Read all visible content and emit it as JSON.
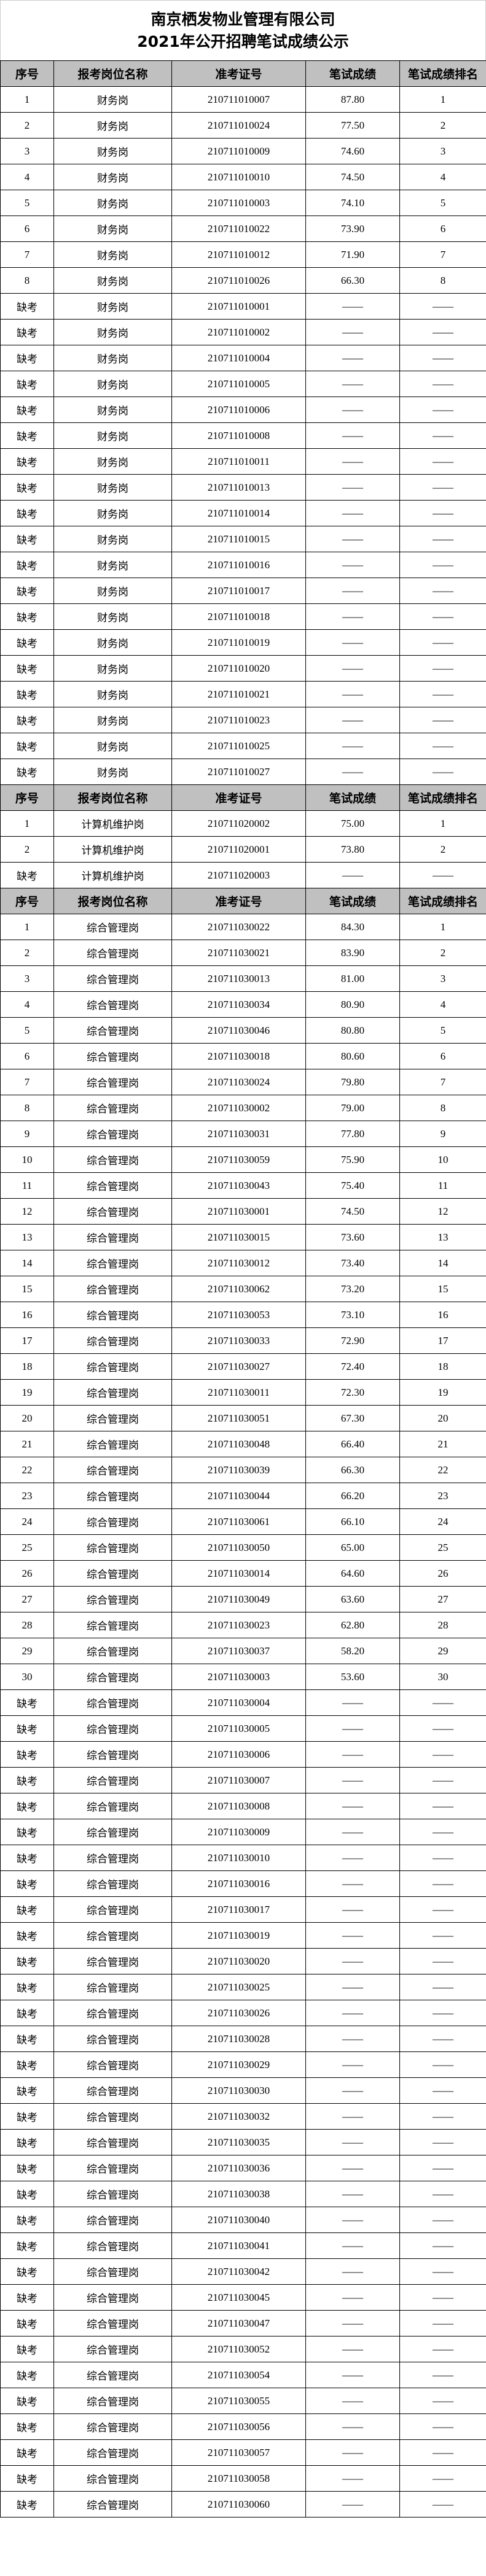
{
  "title": {
    "line1": "南京栖发物业管理有限公司",
    "line2": "2021年公开招聘笔试成绩公示"
  },
  "headers": [
    "序号",
    "报考岗位名称",
    "准考证号",
    "笔试成绩",
    "笔试成绩排名"
  ],
  "sections": [
    {
      "rows": [
        [
          "1",
          "财务岗",
          "210711010007",
          "87.80",
          "1"
        ],
        [
          "2",
          "财务岗",
          "210711010024",
          "77.50",
          "2"
        ],
        [
          "3",
          "财务岗",
          "210711010009",
          "74.60",
          "3"
        ],
        [
          "4",
          "财务岗",
          "210711010010",
          "74.50",
          "4"
        ],
        [
          "5",
          "财务岗",
          "210711010003",
          "74.10",
          "5"
        ],
        [
          "6",
          "财务岗",
          "210711010022",
          "73.90",
          "6"
        ],
        [
          "7",
          "财务岗",
          "210711010012",
          "71.90",
          "7"
        ],
        [
          "8",
          "财务岗",
          "210711010026",
          "66.30",
          "8"
        ],
        [
          "缺考",
          "财务岗",
          "210711010001",
          "——",
          "——"
        ],
        [
          "缺考",
          "财务岗",
          "210711010002",
          "——",
          "——"
        ],
        [
          "缺考",
          "财务岗",
          "210711010004",
          "——",
          "——"
        ],
        [
          "缺考",
          "财务岗",
          "210711010005",
          "——",
          "——"
        ],
        [
          "缺考",
          "财务岗",
          "210711010006",
          "——",
          "——"
        ],
        [
          "缺考",
          "财务岗",
          "210711010008",
          "——",
          "——"
        ],
        [
          "缺考",
          "财务岗",
          "210711010011",
          "——",
          "——"
        ],
        [
          "缺考",
          "财务岗",
          "210711010013",
          "——",
          "——"
        ],
        [
          "缺考",
          "财务岗",
          "210711010014",
          "——",
          "——"
        ],
        [
          "缺考",
          "财务岗",
          "210711010015",
          "——",
          "——"
        ],
        [
          "缺考",
          "财务岗",
          "210711010016",
          "——",
          "——"
        ],
        [
          "缺考",
          "财务岗",
          "210711010017",
          "——",
          "——"
        ],
        [
          "缺考",
          "财务岗",
          "210711010018",
          "——",
          "——"
        ],
        [
          "缺考",
          "财务岗",
          "210711010019",
          "——",
          "——"
        ],
        [
          "缺考",
          "财务岗",
          "210711010020",
          "——",
          "——"
        ],
        [
          "缺考",
          "财务岗",
          "210711010021",
          "——",
          "——"
        ],
        [
          "缺考",
          "财务岗",
          "210711010023",
          "——",
          "——"
        ],
        [
          "缺考",
          "财务岗",
          "210711010025",
          "——",
          "——"
        ],
        [
          "缺考",
          "财务岗",
          "210711010027",
          "——",
          "——"
        ]
      ]
    },
    {
      "rows": [
        [
          "1",
          "计算机维护岗",
          "210711020002",
          "75.00",
          "1"
        ],
        [
          "2",
          "计算机维护岗",
          "210711020001",
          "73.80",
          "2"
        ],
        [
          "缺考",
          "计算机维护岗",
          "210711020003",
          "——",
          "——"
        ]
      ]
    },
    {
      "rows": [
        [
          "1",
          "综合管理岗",
          "210711030022",
          "84.30",
          "1"
        ],
        [
          "2",
          "综合管理岗",
          "210711030021",
          "83.90",
          "2"
        ],
        [
          "3",
          "综合管理岗",
          "210711030013",
          "81.00",
          "3"
        ],
        [
          "4",
          "综合管理岗",
          "210711030034",
          "80.90",
          "4"
        ],
        [
          "5",
          "综合管理岗",
          "210711030046",
          "80.80",
          "5"
        ],
        [
          "6",
          "综合管理岗",
          "210711030018",
          "80.60",
          "6"
        ],
        [
          "7",
          "综合管理岗",
          "210711030024",
          "79.80",
          "7"
        ],
        [
          "8",
          "综合管理岗",
          "210711030002",
          "79.00",
          "8"
        ],
        [
          "9",
          "综合管理岗",
          "210711030031",
          "77.80",
          "9"
        ],
        [
          "10",
          "综合管理岗",
          "210711030059",
          "75.90",
          "10"
        ],
        [
          "11",
          "综合管理岗",
          "210711030043",
          "75.40",
          "11"
        ],
        [
          "12",
          "综合管理岗",
          "210711030001",
          "74.50",
          "12"
        ],
        [
          "13",
          "综合管理岗",
          "210711030015",
          "73.60",
          "13"
        ],
        [
          "14",
          "综合管理岗",
          "210711030012",
          "73.40",
          "14"
        ],
        [
          "15",
          "综合管理岗",
          "210711030062",
          "73.20",
          "15"
        ],
        [
          "16",
          "综合管理岗",
          "210711030053",
          "73.10",
          "16"
        ],
        [
          "17",
          "综合管理岗",
          "210711030033",
          "72.90",
          "17"
        ],
        [
          "18",
          "综合管理岗",
          "210711030027",
          "72.40",
          "18"
        ],
        [
          "19",
          "综合管理岗",
          "210711030011",
          "72.30",
          "19"
        ],
        [
          "20",
          "综合管理岗",
          "210711030051",
          "67.30",
          "20"
        ],
        [
          "21",
          "综合管理岗",
          "210711030048",
          "66.40",
          "21"
        ],
        [
          "22",
          "综合管理岗",
          "210711030039",
          "66.30",
          "22"
        ],
        [
          "23",
          "综合管理岗",
          "210711030044",
          "66.20",
          "23"
        ],
        [
          "24",
          "综合管理岗",
          "210711030061",
          "66.10",
          "24"
        ],
        [
          "25",
          "综合管理岗",
          "210711030050",
          "65.00",
          "25"
        ],
        [
          "26",
          "综合管理岗",
          "210711030014",
          "64.60",
          "26"
        ],
        [
          "27",
          "综合管理岗",
          "210711030049",
          "63.60",
          "27"
        ],
        [
          "28",
          "综合管理岗",
          "210711030023",
          "62.80",
          "28"
        ],
        [
          "29",
          "综合管理岗",
          "210711030037",
          "58.20",
          "29"
        ],
        [
          "30",
          "综合管理岗",
          "210711030003",
          "53.60",
          "30"
        ],
        [
          "缺考",
          "综合管理岗",
          "210711030004",
          "——",
          "——"
        ],
        [
          "缺考",
          "综合管理岗",
          "210711030005",
          "——",
          "——"
        ],
        [
          "缺考",
          "综合管理岗",
          "210711030006",
          "——",
          "——"
        ],
        [
          "缺考",
          "综合管理岗",
          "210711030007",
          "——",
          "——"
        ],
        [
          "缺考",
          "综合管理岗",
          "210711030008",
          "——",
          "——"
        ],
        [
          "缺考",
          "综合管理岗",
          "210711030009",
          "——",
          "——"
        ],
        [
          "缺考",
          "综合管理岗",
          "210711030010",
          "——",
          "——"
        ],
        [
          "缺考",
          "综合管理岗",
          "210711030016",
          "——",
          "——"
        ],
        [
          "缺考",
          "综合管理岗",
          "210711030017",
          "——",
          "——"
        ],
        [
          "缺考",
          "综合管理岗",
          "210711030019",
          "——",
          "——"
        ],
        [
          "缺考",
          "综合管理岗",
          "210711030020",
          "——",
          "——"
        ],
        [
          "缺考",
          "综合管理岗",
          "210711030025",
          "——",
          "——"
        ],
        [
          "缺考",
          "综合管理岗",
          "210711030026",
          "——",
          "——"
        ],
        [
          "缺考",
          "综合管理岗",
          "210711030028",
          "——",
          "——"
        ],
        [
          "缺考",
          "综合管理岗",
          "210711030029",
          "——",
          "——"
        ],
        [
          "缺考",
          "综合管理岗",
          "210711030030",
          "——",
          "——"
        ],
        [
          "缺考",
          "综合管理岗",
          "210711030032",
          "——",
          "——"
        ],
        [
          "缺考",
          "综合管理岗",
          "210711030035",
          "——",
          "——"
        ],
        [
          "缺考",
          "综合管理岗",
          "210711030036",
          "——",
          "——"
        ],
        [
          "缺考",
          "综合管理岗",
          "210711030038",
          "——",
          "——"
        ],
        [
          "缺考",
          "综合管理岗",
          "210711030040",
          "——",
          "——"
        ],
        [
          "缺考",
          "综合管理岗",
          "210711030041",
          "——",
          "——"
        ],
        [
          "缺考",
          "综合管理岗",
          "210711030042",
          "——",
          "——"
        ],
        [
          "缺考",
          "综合管理岗",
          "210711030045",
          "——",
          "——"
        ],
        [
          "缺考",
          "综合管理岗",
          "210711030047",
          "——",
          "——"
        ],
        [
          "缺考",
          "综合管理岗",
          "210711030052",
          "——",
          "——"
        ],
        [
          "缺考",
          "综合管理岗",
          "210711030054",
          "——",
          "——"
        ],
        [
          "缺考",
          "综合管理岗",
          "210711030055",
          "——",
          "——"
        ],
        [
          "缺考",
          "综合管理岗",
          "210711030056",
          "——",
          "——"
        ],
        [
          "缺考",
          "综合管理岗",
          "210711030057",
          "——",
          "——"
        ],
        [
          "缺考",
          "综合管理岗",
          "210711030058",
          "——",
          "——"
        ],
        [
          "缺考",
          "综合管理岗",
          "210711030060",
          "——",
          "——"
        ]
      ]
    }
  ]
}
